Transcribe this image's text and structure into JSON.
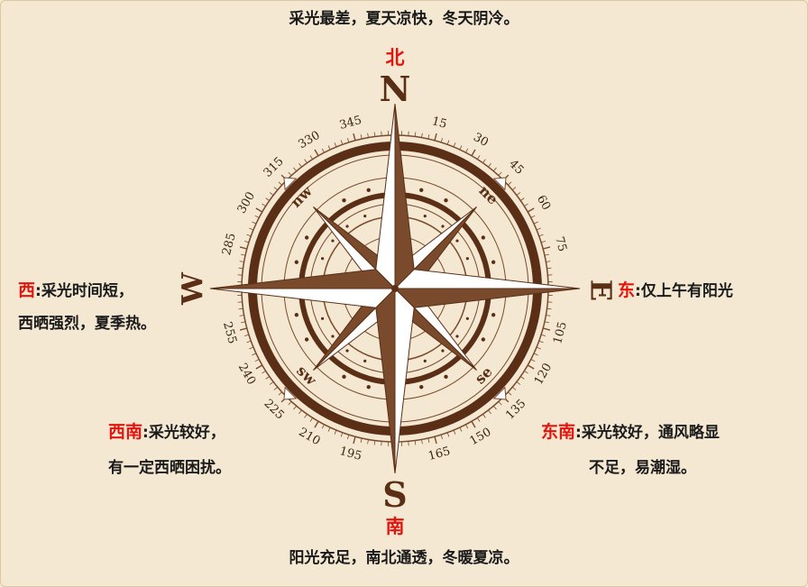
{
  "top_text": "采光最差，夏天凉快，冬天阴冷。",
  "bottom_text": "阳光充足，南北通透，冬暖夏凉。",
  "north_label": "北",
  "south_label": "南",
  "west": {
    "dir": "西",
    "line1": ":采光时间短，",
    "line2": "西晒强烈，夏季热。"
  },
  "east": {
    "dir": "东",
    "line1": ":仅上午有阳光"
  },
  "southwest": {
    "dir": "西南",
    "line1": ":采光较好，",
    "line2": "有一定西晒困扰。"
  },
  "southeast": {
    "dir": "东南",
    "line1": ":采光较好，通风略显",
    "line2": "不足，易潮湿。"
  },
  "compass": {
    "cardinals": {
      "n": "N",
      "s": "S",
      "e": "E",
      "w": "W"
    },
    "intercardinals": {
      "ne": "ne",
      "se": "se",
      "sw": "sw",
      "nw": "nw"
    },
    "degree_labels": [
      "15",
      "30",
      "45",
      "60",
      "75",
      "105",
      "120",
      "135",
      "150",
      "165",
      "195",
      "210",
      "225",
      "240",
      "255",
      "285",
      "300",
      "315",
      "330",
      "345"
    ]
  },
  "colors": {
    "brown": "#7a4a2c",
    "dark_brown": "#5a2f16",
    "red": "#e3140e",
    "background": "#f4e8d2"
  }
}
